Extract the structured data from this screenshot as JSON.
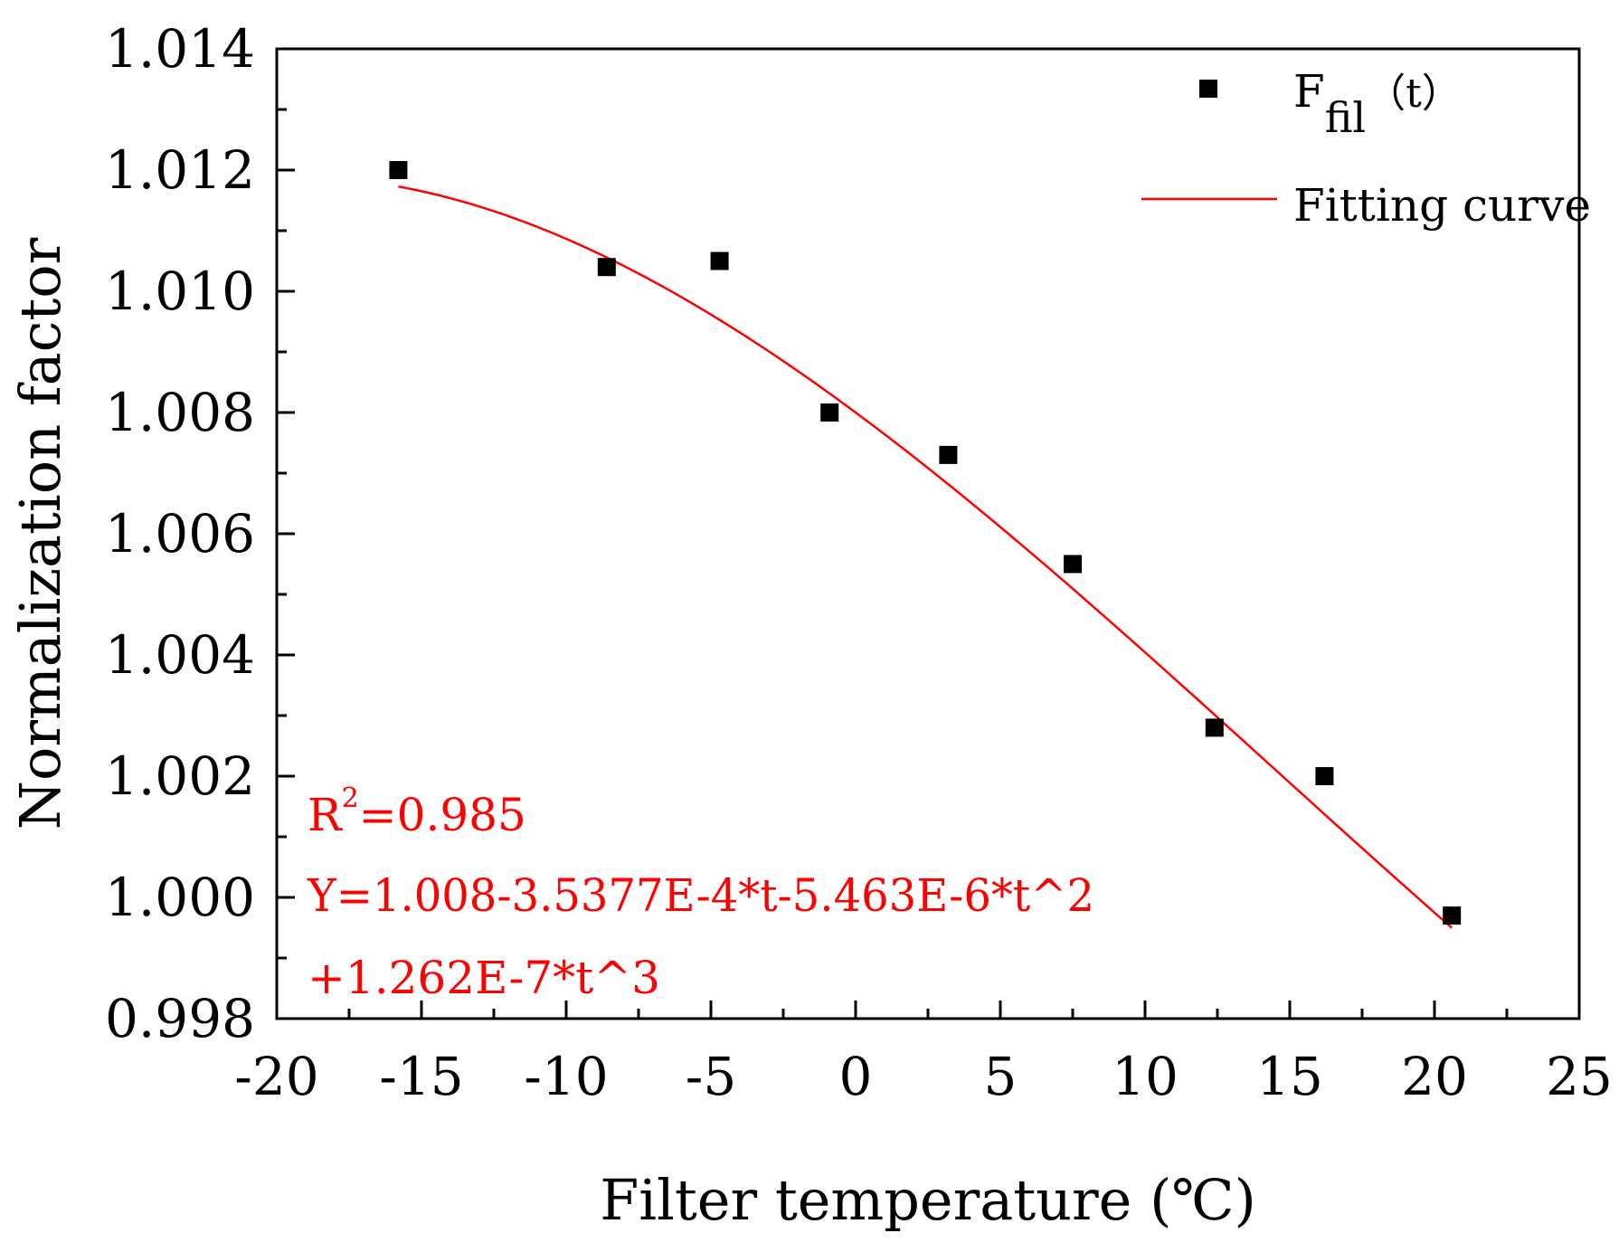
{
  "chart_data": {
    "type": "scatter",
    "xlabel": "Filter temperature (℃)",
    "ylabel": "Normalization factor",
    "xlim": [
      -20,
      25
    ],
    "ylim": [
      0.998,
      1.014
    ],
    "x_ticks": [
      -20,
      -15,
      -10,
      -5,
      0,
      5,
      10,
      15,
      20,
      25
    ],
    "x_tick_labels": [
      "-20",
      "-15",
      "-10",
      "-5",
      "0",
      "5",
      "10",
      "15",
      "20",
      "25"
    ],
    "y_ticks": [
      0.998,
      1.0,
      1.002,
      1.004,
      1.006,
      1.008,
      1.01,
      1.012,
      1.014
    ],
    "y_tick_labels": [
      "0.998",
      "1.000",
      "1.002",
      "1.004",
      "1.006",
      "1.008",
      "1.010",
      "1.012",
      "1.014"
    ],
    "series": [
      {
        "name": "Ffil(t)",
        "kind": "scatter",
        "x": [
          -15.8,
          -8.6,
          -4.7,
          -0.9,
          3.2,
          7.5,
          12.4,
          16.2,
          20.6
        ],
        "y": [
          1.012,
          1.0104,
          1.0105,
          1.008,
          1.0073,
          1.0055,
          1.0028,
          1.002,
          0.9997
        ]
      },
      {
        "name": "Fitting curve",
        "kind": "line",
        "color": "#ff0000",
        "x_range": [
          -15.8,
          20.6
        ],
        "coefficients": [
          1.008,
          -0.00035377,
          -5.463e-06,
          1.262e-07
        ]
      }
    ],
    "legend": {
      "position": "top-right",
      "scatter_main": "F",
      "scatter_sub": "fil",
      "scatter_suffix": "（t）",
      "line_label": "Fitting curve"
    },
    "annotations": {
      "r2_prefix": "R",
      "r2_sup": "2",
      "r2_value": "=0.985",
      "equation_line1": "Y=1.008-3.5377E-4*t-5.463E-6*t^2",
      "equation_line2": "+1.262E-7*t^3",
      "color": "#ff0000"
    }
  }
}
